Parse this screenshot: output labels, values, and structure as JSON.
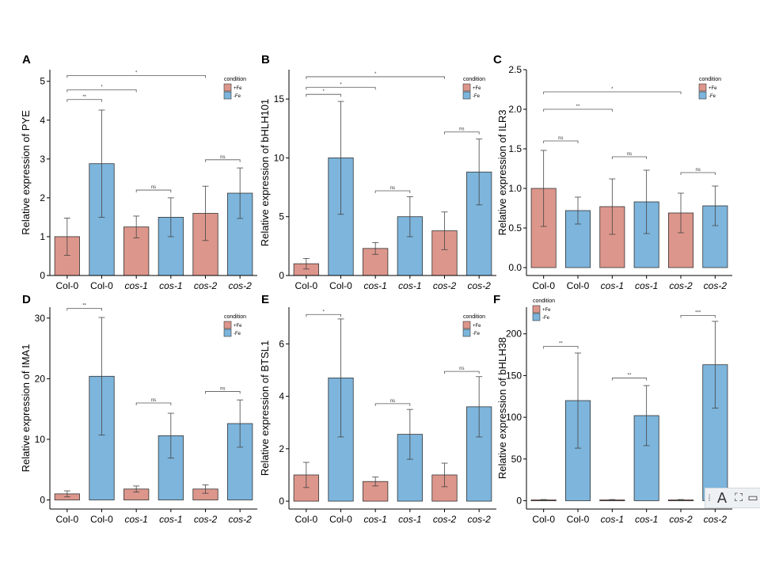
{
  "colors": {
    "plus_fe": "#dd968b",
    "minus_fe": "#7db5dc",
    "axis": "#000000",
    "bracket": "#555555"
  },
  "toolbar": {
    "grip": "⁞",
    "text_tool": "A",
    "shape_tool": "⛶",
    "more_tool": "▭"
  },
  "chart_data": [
    {
      "panel": "A",
      "type": "bar",
      "ylabel": "Relative expression of PYE",
      "categories": [
        "Col-0",
        "Col-0",
        "cos-1",
        "cos-1",
        "cos-2",
        "cos-2"
      ],
      "italic": [
        false,
        false,
        true,
        true,
        true,
        true
      ],
      "conditions": [
        "+Fe",
        "-Fe",
        "+Fe",
        "-Fe",
        "+Fe",
        "-Fe"
      ],
      "values": [
        1.0,
        2.88,
        1.25,
        1.5,
        1.6,
        2.12
      ],
      "errors": [
        0.48,
        1.38,
        0.28,
        0.5,
        0.7,
        0.65
      ],
      "ylim": [
        0,
        5.3
      ],
      "yticks": [
        0,
        1,
        2,
        3,
        4,
        5
      ],
      "tick_labels": [
        "0",
        "1",
        "2",
        "3",
        "4",
        "5"
      ],
      "legend": {
        "title": "condition",
        "position": "top-right",
        "labels": [
          "+Fe",
          "-Fe"
        ]
      },
      "brackets": [
        {
          "from": 0,
          "to": 1,
          "y": 4.53,
          "label": "**"
        },
        {
          "from": 0,
          "to": 2,
          "y": 4.78,
          "label": "*"
        },
        {
          "from": 0,
          "to": 4,
          "y": 5.15,
          "label": "*"
        },
        {
          "from": 2,
          "to": 3,
          "y": 2.2,
          "label": "ns"
        },
        {
          "from": 4,
          "to": 5,
          "y": 2.98,
          "label": "ns"
        }
      ]
    },
    {
      "panel": "B",
      "type": "bar",
      "ylabel": "Relative expression of bHLH101",
      "categories": [
        "Col-0",
        "Col-0",
        "cos-1",
        "cos-1",
        "cos-2",
        "cos-2"
      ],
      "italic": [
        false,
        false,
        true,
        true,
        true,
        true
      ],
      "conditions": [
        "+Fe",
        "-Fe",
        "+Fe",
        "-Fe",
        "+Fe",
        "-Fe"
      ],
      "values": [
        1.0,
        10.0,
        2.3,
        5.0,
        3.8,
        8.8
      ],
      "errors": [
        0.45,
        4.8,
        0.5,
        1.7,
        1.6,
        2.8
      ],
      "ylim": [
        0,
        17.5
      ],
      "yticks": [
        0,
        5,
        10,
        15
      ],
      "tick_labels": [
        "0",
        "5",
        "10",
        "15"
      ],
      "legend": {
        "title": "condition",
        "position": "top-right",
        "labels": [
          "+Fe",
          "-Fe"
        ]
      },
      "brackets": [
        {
          "from": 0,
          "to": 1,
          "y": 15.4,
          "label": "*"
        },
        {
          "from": 0,
          "to": 2,
          "y": 16.0,
          "label": "*"
        },
        {
          "from": 0,
          "to": 4,
          "y": 16.9,
          "label": "*"
        },
        {
          "from": 2,
          "to": 3,
          "y": 7.2,
          "label": "ns"
        },
        {
          "from": 4,
          "to": 5,
          "y": 12.2,
          "label": "ns"
        }
      ]
    },
    {
      "panel": "C",
      "type": "bar",
      "ylabel": "Relative expression of ILR3",
      "categories": [
        "Col-0",
        "Col-0",
        "cos-1",
        "cos-1",
        "cos-2",
        "cos-2"
      ],
      "italic": [
        false,
        false,
        true,
        true,
        true,
        true
      ],
      "conditions": [
        "+Fe",
        "-Fe",
        "+Fe",
        "-Fe",
        "+Fe",
        "-Fe"
      ],
      "values": [
        1.0,
        0.72,
        0.77,
        0.83,
        0.69,
        0.78
      ],
      "errors": [
        0.48,
        0.17,
        0.35,
        0.4,
        0.25,
        0.25
      ],
      "ylim": [
        -0.1,
        2.5
      ],
      "yticks": [
        0,
        0.5,
        1.0,
        1.5,
        2.0,
        2.5
      ],
      "tick_labels": [
        "0.0",
        "0.5",
        "1.0",
        "1.5",
        "2.0",
        "2.5"
      ],
      "legend": {
        "title": "condition",
        "position": "top-right",
        "labels": [
          "+Fe",
          "-Fe"
        ]
      },
      "brackets": [
        {
          "from": 0,
          "to": 1,
          "y": 1.6,
          "label": "ns"
        },
        {
          "from": 0,
          "to": 2,
          "y": 2.0,
          "label": "**"
        },
        {
          "from": 0,
          "to": 4,
          "y": 2.22,
          "label": "*"
        },
        {
          "from": 2,
          "to": 3,
          "y": 1.4,
          "label": "ns"
        },
        {
          "from": 4,
          "to": 5,
          "y": 1.2,
          "label": "ns"
        }
      ]
    },
    {
      "panel": "D",
      "type": "bar",
      "ylabel": "Relative expression of IMA1",
      "categories": [
        "Col-0",
        "Col-0",
        "cos-1",
        "cos-1",
        "cos-2",
        "cos-2"
      ],
      "italic": [
        false,
        false,
        true,
        true,
        true,
        true
      ],
      "conditions": [
        "+Fe",
        "-Fe",
        "+Fe",
        "-Fe",
        "+Fe",
        "-Fe"
      ],
      "values": [
        1.0,
        20.4,
        1.8,
        10.6,
        1.8,
        12.6
      ],
      "errors": [
        0.5,
        9.7,
        0.5,
        3.7,
        0.7,
        3.9
      ],
      "ylim": [
        -1.5,
        31.8
      ],
      "yticks": [
        0,
        10,
        20,
        30
      ],
      "tick_labels": [
        "0",
        "10",
        "20",
        "30"
      ],
      "legend": {
        "title": "condition",
        "position": "top-right",
        "labels": [
          "+Fe",
          "-Fe"
        ]
      },
      "brackets": [
        {
          "from": 0,
          "to": 1,
          "y": 31.6,
          "label": "**"
        },
        {
          "from": 2,
          "to": 3,
          "y": 16.0,
          "label": "ns"
        },
        {
          "from": 4,
          "to": 5,
          "y": 17.9,
          "label": "ns"
        }
      ]
    },
    {
      "panel": "E",
      "type": "bar",
      "ylabel": "Relative expression of BTSL1",
      "categories": [
        "Col-0",
        "Col-0",
        "cos-1",
        "cos-1",
        "cos-2",
        "cos-2"
      ],
      "italic": [
        false,
        false,
        true,
        true,
        true,
        true
      ],
      "conditions": [
        "+Fe",
        "-Fe",
        "+Fe",
        "-Fe",
        "+Fe",
        "-Fe"
      ],
      "values": [
        1.0,
        4.7,
        0.75,
        2.55,
        1.0,
        3.6
      ],
      "errors": [
        0.48,
        2.25,
        0.17,
        0.95,
        0.45,
        1.15
      ],
      "ylim": [
        -0.3,
        7.4
      ],
      "yticks": [
        0,
        2,
        4,
        6
      ],
      "tick_labels": [
        "0",
        "2",
        "4",
        "6"
      ],
      "legend": {
        "title": "condition",
        "position": "top-right",
        "labels": [
          "+Fe",
          "-Fe"
        ]
      },
      "brackets": [
        {
          "from": 0,
          "to": 1,
          "y": 7.12,
          "label": "*"
        },
        {
          "from": 2,
          "to": 3,
          "y": 3.72,
          "label": "ns"
        },
        {
          "from": 4,
          "to": 5,
          "y": 4.95,
          "label": "ns"
        }
      ]
    },
    {
      "panel": "F",
      "type": "bar",
      "ylabel": "Relative expression of bHLH38",
      "categories": [
        "Col-0",
        "Col-0",
        "cos-1",
        "cos-1",
        "cos-2",
        "cos-2"
      ],
      "italic": [
        false,
        false,
        true,
        true,
        true,
        true
      ],
      "conditions": [
        "+Fe",
        "-Fe",
        "+Fe",
        "-Fe",
        "+Fe",
        "-Fe"
      ],
      "values": [
        1.0,
        120,
        1.0,
        102,
        1.0,
        163
      ],
      "errors": [
        0.4,
        57,
        0.4,
        36,
        0.4,
        52
      ],
      "ylim": [
        -10,
        232
      ],
      "yticks": [
        0,
        50,
        100,
        150,
        200
      ],
      "tick_labels": [
        "0",
        "50",
        "100",
        "150",
        "200"
      ],
      "legend": {
        "title": "condition",
        "position": "top-left",
        "labels": [
          "+Fe",
          "-Fe"
        ]
      },
      "brackets": [
        {
          "from": 0,
          "to": 1,
          "y": 185,
          "label": "**"
        },
        {
          "from": 2,
          "to": 3,
          "y": 147,
          "label": "**"
        },
        {
          "from": 4,
          "to": 5,
          "y": 222,
          "label": "***"
        }
      ]
    }
  ]
}
